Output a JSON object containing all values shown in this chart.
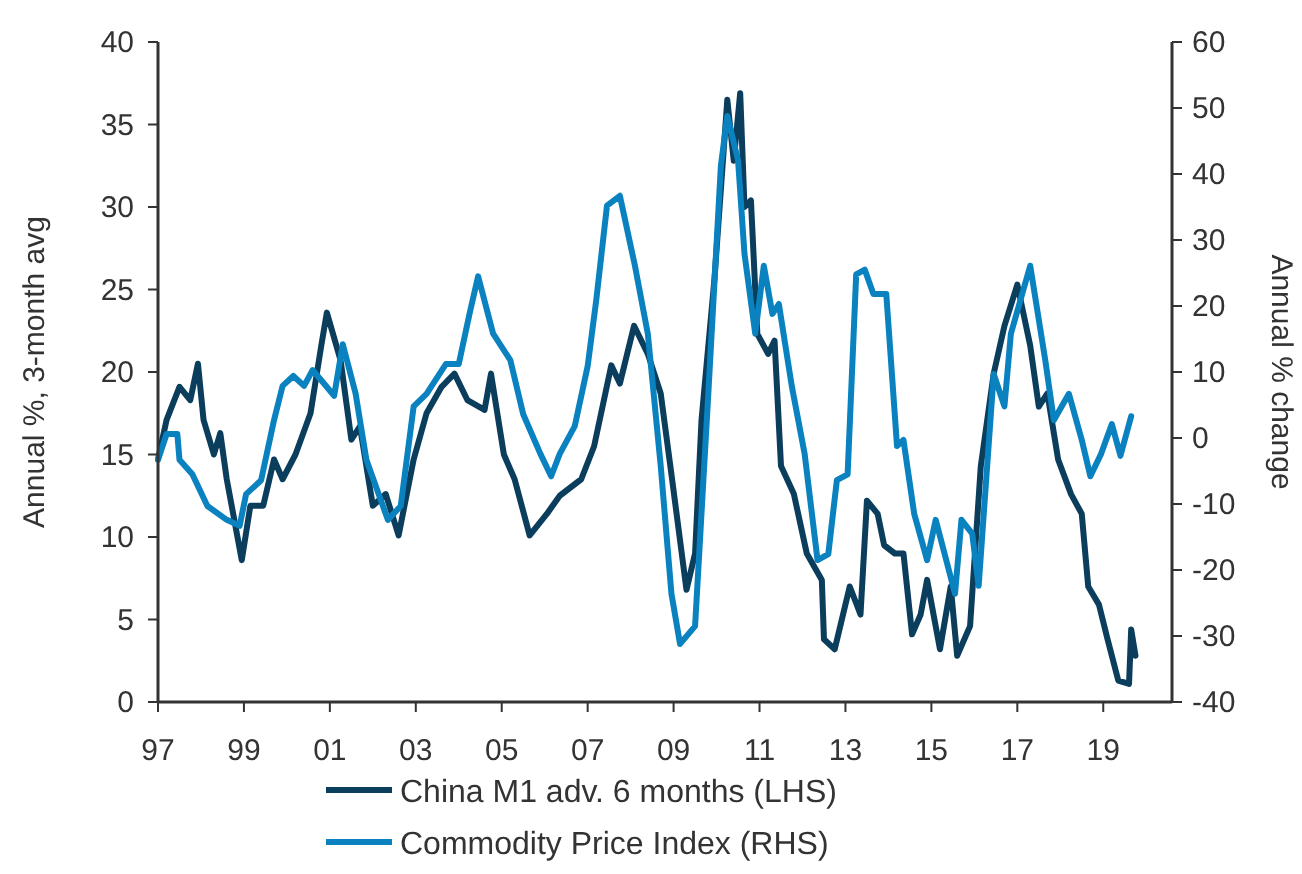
{
  "chart_data": {
    "type": "line",
    "ylabel": "Annual %, 3-month avg",
    "y2label": "Annual % change",
    "xlim": [
      1997,
      2020.6
    ],
    "xticks": [
      {
        "value": 1997,
        "label": "97"
      },
      {
        "value": 1999,
        "label": "99"
      },
      {
        "value": 2001,
        "label": "01"
      },
      {
        "value": 2003,
        "label": "03"
      },
      {
        "value": 2005,
        "label": "05"
      },
      {
        "value": 2007,
        "label": "07"
      },
      {
        "value": 2009,
        "label": "09"
      },
      {
        "value": 2011,
        "label": "11"
      },
      {
        "value": 2013,
        "label": "13"
      },
      {
        "value": 2015,
        "label": "15"
      },
      {
        "value": 2017,
        "label": "17"
      },
      {
        "value": 2019,
        "label": "19"
      }
    ],
    "ylim": [
      0,
      40
    ],
    "yticks": [
      0,
      5,
      10,
      15,
      20,
      25,
      30,
      35,
      40
    ],
    "y2lim": [
      -40,
      60
    ],
    "y2ticks": [
      -40,
      -30,
      -20,
      -10,
      0,
      10,
      20,
      30,
      40,
      50,
      60
    ],
    "grid": false,
    "legend": "bottom",
    "line_style": "solid",
    "marker": "none",
    "series": [
      {
        "name": "China M1 adv. 6 months (LHS)",
        "color": "#0b3d5c",
        "x": [
          1997.0,
          1997.2,
          1997.5,
          1997.75,
          1997.93,
          1998.06,
          1998.3,
          1998.45,
          1998.6,
          1998.95,
          1999.15,
          1999.45,
          1999.7,
          1999.9,
          2000.2,
          2000.55,
          2000.8,
          2000.93,
          2001.25,
          2001.5,
          2001.7,
          2002.0,
          2002.3,
          2002.6,
          2002.95,
          2003.25,
          2003.6,
          2003.9,
          2004.2,
          2004.6,
          2004.75,
          2005.05,
          2005.3,
          2005.65,
          2006.05,
          2006.35,
          2006.85,
          2007.15,
          2007.55,
          2007.75,
          2008.08,
          2008.4,
          2008.7,
          2008.95,
          2009.3,
          2009.5,
          2009.65,
          2009.95,
          2010.25,
          2010.4,
          2010.55,
          2010.65,
          2010.8,
          2010.95,
          2011.2,
          2011.35,
          2011.5,
          2011.8,
          2012.1,
          2012.45,
          2012.5,
          2012.75,
          2013.1,
          2013.35,
          2013.5,
          2013.75,
          2013.9,
          2014.15,
          2014.35,
          2014.55,
          2014.75,
          2014.9,
          2015.2,
          2015.45,
          2015.6,
          2015.9,
          2016.15,
          2016.45,
          2016.7,
          2017.0,
          2017.3,
          2017.5,
          2017.7,
          2017.95,
          2018.25,
          2018.5,
          2018.65,
          2018.9,
          2019.1,
          2019.35,
          2019.6,
          2019.65,
          2019.75
        ],
        "values": [
          14.7,
          17.1,
          19.1,
          18.3,
          20.5,
          17.1,
          15,
          16.3,
          13.5,
          8.6,
          11.9,
          11.9,
          14.7,
          13.5,
          15,
          17.5,
          21.6,
          23.6,
          20.7,
          15.9,
          16.7,
          11.9,
          12.6,
          10.1,
          14.7,
          17.5,
          19.1,
          19.9,
          18.3,
          17.7,
          19.9,
          15,
          13.5,
          10.1,
          11.4,
          12.5,
          13.5,
          15.5,
          20.4,
          19.3,
          22.8,
          21.1,
          18.7,
          13.8,
          6.8,
          9,
          17.1,
          25.6,
          36.5,
          32.8,
          36.9,
          30,
          30.4,
          22.3,
          21.1,
          21.9,
          14.3,
          12.6,
          9,
          7.4,
          3.8,
          3.2,
          7,
          5.3,
          12.2,
          11.4,
          9.5,
          9,
          9,
          4.1,
          5.3,
          7.4,
          3.2,
          7,
          2.8,
          4.6,
          14.3,
          19.9,
          22.8,
          25.3,
          21.6,
          17.9,
          18.7,
          14.7,
          12.6,
          11.4,
          7,
          5.9,
          3.8,
          1.3,
          1.1,
          4.4,
          2.8
        ]
      },
      {
        "name": "Commodity Price Index (RHS)",
        "color": "#0a82c0",
        "axis": "y2",
        "x": [
          1997.0,
          1997.2,
          1997.45,
          1997.5,
          1997.8,
          1998.15,
          1998.6,
          1998.9,
          1999.05,
          1999.4,
          1999.7,
          1999.9,
          2000.15,
          2000.4,
          2000.6,
          2001.1,
          2001.3,
          2001.6,
          2001.85,
          2002.35,
          2002.65,
          2002.95,
          2003.25,
          2003.7,
          2004.0,
          2004.25,
          2004.45,
          2004.8,
          2005.2,
          2005.5,
          2005.9,
          2006.15,
          2006.35,
          2006.7,
          2007.0,
          2007.2,
          2007.45,
          2007.75,
          2008.1,
          2008.4,
          2008.7,
          2008.95,
          2009.15,
          2009.5,
          2009.8,
          2010.1,
          2010.25,
          2010.5,
          2010.65,
          2010.9,
          2011.1,
          2011.3,
          2011.45,
          2011.75,
          2012.05,
          2012.35,
          2012.6,
          2012.8,
          2013.05,
          2013.25,
          2013.45,
          2013.65,
          2013.95,
          2014.2,
          2014.35,
          2014.6,
          2014.9,
          2015.1,
          2015.55,
          2015.7,
          2015.95,
          2016.1,
          2016.45,
          2016.7,
          2016.85,
          2017.3,
          2017.65,
          2017.85,
          2018.2,
          2018.5,
          2018.7,
          2018.95,
          2019.2,
          2019.4,
          2019.65
        ],
        "values": [
          -3.3,
          0.6,
          0.6,
          -3.3,
          -5.5,
          -10.3,
          -12.4,
          -13.3,
          -8.5,
          -6.4,
          2.7,
          7.9,
          9.4,
          7.9,
          10.3,
          6.4,
          14.2,
          6.7,
          -3.3,
          -12.4,
          -10.3,
          4.8,
          6.7,
          11.2,
          11.2,
          18.8,
          24.5,
          15.8,
          11.8,
          3.6,
          -2.4,
          -5.8,
          -2.4,
          1.8,
          10.9,
          20.9,
          35.2,
          36.7,
          26.1,
          15.8,
          -4.2,
          -23.6,
          -31.2,
          -28.5,
          5.8,
          41.2,
          48.8,
          42.1,
          27.9,
          15.8,
          26.1,
          18.8,
          20.3,
          7.9,
          -2.4,
          -18.5,
          -17.6,
          -6.4,
          -5.5,
          24.8,
          25.5,
          21.8,
          21.8,
          -1.2,
          -0.3,
          -11.5,
          -18.5,
          -12.4,
          -23.6,
          -12.4,
          -14.5,
          -22.4,
          9.7,
          4.8,
          15.8,
          26.1,
          11.8,
          2.7,
          6.7,
          -0.3,
          -5.8,
          -2.4,
          2.1,
          -2.7,
          3.3
        ]
      }
    ]
  }
}
